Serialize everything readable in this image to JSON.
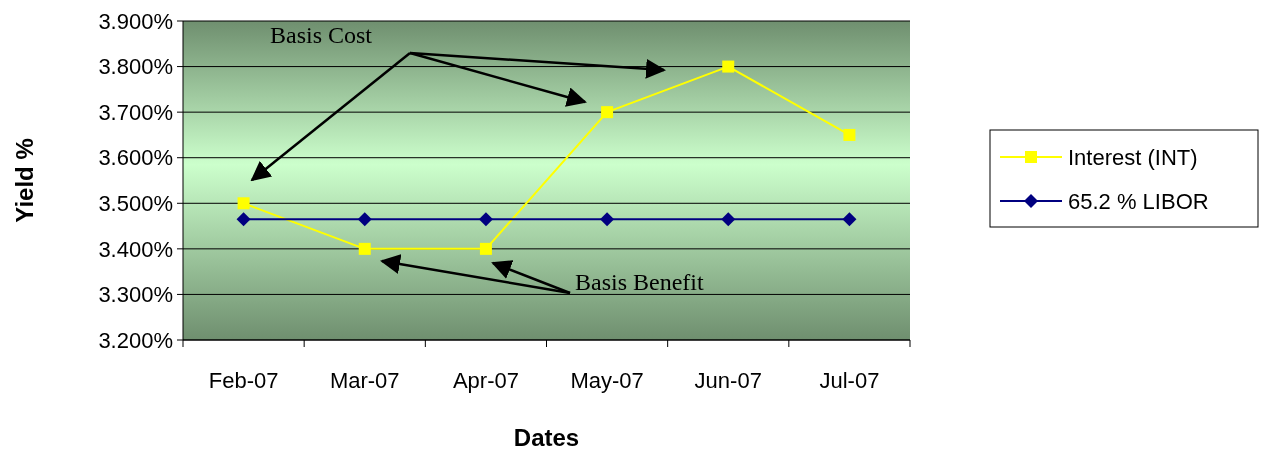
{
  "chart_data": {
    "type": "line",
    "xlabel": "Dates",
    "ylabel": "Yield %",
    "categories": [
      "Feb-07",
      "Mar-07",
      "Apr-07",
      "May-07",
      "Jun-07",
      "Jul-07"
    ],
    "series": [
      {
        "name": "Interest (INT)",
        "color": "#ffff00",
        "marker": "square",
        "values": [
          3.5,
          3.4,
          3.4,
          3.7,
          3.8,
          3.65
        ]
      },
      {
        "name": "65.2 % LIBOR",
        "color": "#000080",
        "marker": "diamond",
        "values": [
          3.465,
          3.465,
          3.465,
          3.465,
          3.465,
          3.465
        ]
      }
    ],
    "ylim": [
      3.2,
      3.9
    ],
    "yticks": [
      {
        "value": 3.2,
        "label": "3.200%"
      },
      {
        "value": 3.3,
        "label": "3.300%"
      },
      {
        "value": 3.4,
        "label": "3.400%"
      },
      {
        "value": 3.5,
        "label": "3.500%"
      },
      {
        "value": 3.6,
        "label": "3.600%"
      },
      {
        "value": 3.7,
        "label": "3.700%"
      },
      {
        "value": 3.8,
        "label": "3.800%"
      },
      {
        "value": 3.9,
        "label": "3.900%"
      }
    ],
    "grid": "y",
    "legend": "right",
    "annotations": [
      "Basis Cost",
      "Basis Benefit"
    ]
  }
}
